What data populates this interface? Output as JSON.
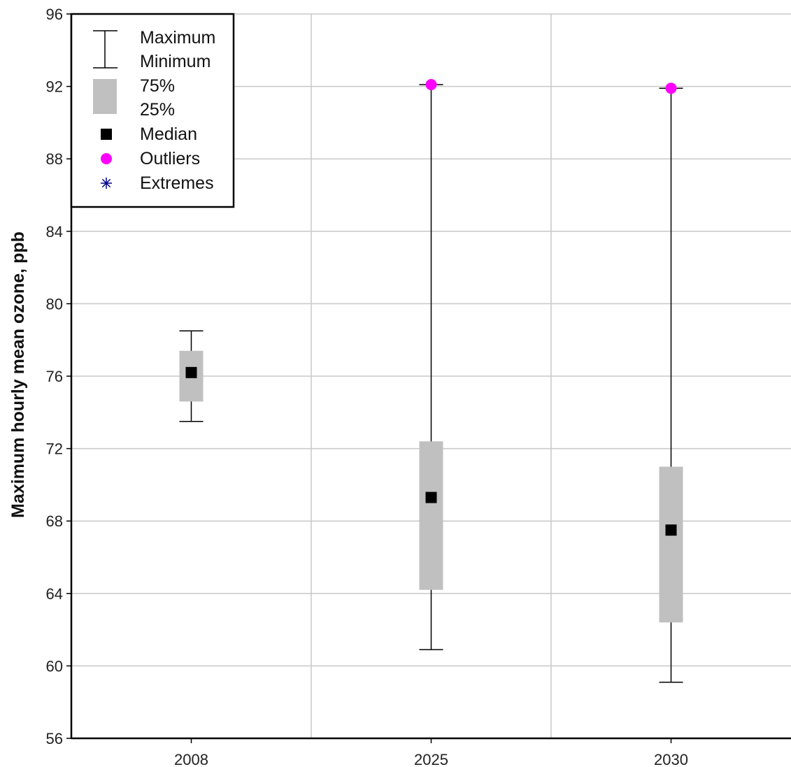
{
  "chart_data": {
    "type": "box",
    "ylabel": "Maximum hourly mean ozone, ppb",
    "xlabel": "",
    "title": "",
    "ylim": [
      56,
      96
    ],
    "yticks": [
      56,
      60,
      64,
      68,
      72,
      76,
      80,
      84,
      88,
      92,
      96
    ],
    "ytick_labels": [
      "56",
      "60",
      "64",
      "68",
      "72",
      "76",
      "80",
      "84",
      "88",
      "92",
      "96"
    ],
    "grid": true,
    "legend_position": "top-left",
    "categories": [
      "2008",
      "2025",
      "2030"
    ],
    "boxes": [
      {
        "category": "2008",
        "min": 73.5,
        "q1": 74.6,
        "median": 76.2,
        "q3": 77.4,
        "max": 78.5,
        "outliers": []
      },
      {
        "category": "2025",
        "min": 60.9,
        "q1": 64.2,
        "median": 69.3,
        "q3": 72.4,
        "max": 92.1,
        "outliers": [
          92.1
        ]
      },
      {
        "category": "2030",
        "min": 59.1,
        "q1": 62.4,
        "median": 67.5,
        "q3": 71.0,
        "max": 91.9,
        "outliers": [
          91.9
        ]
      }
    ],
    "legend": {
      "max_label": "Maximum",
      "min_label": "Minimum",
      "q3_label": "75%",
      "q1_label": "25%",
      "median_label": "Median",
      "outliers_label": "Outliers",
      "extremes_label": "Extremes"
    },
    "colors": {
      "box": "#c0c0c0",
      "median": "#000000",
      "outlier": "#ff00ff",
      "extreme": "#00008b",
      "grid": "#c8c8c8",
      "axis": "#000000"
    }
  }
}
